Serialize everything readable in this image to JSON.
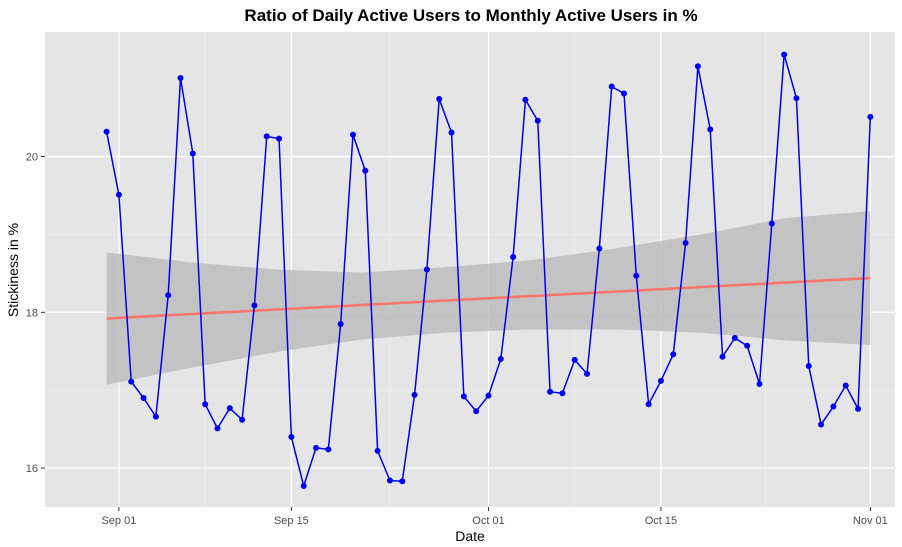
{
  "chart_data": {
    "type": "line",
    "title": "Ratio of Daily Active Users to Monthly Active Users in %",
    "xlabel": "Date",
    "ylabel": "Stickiness in %",
    "x_range": [
      "2023-08-26",
      "2023-11-03"
    ],
    "ylim": [
      15.5,
      21.6
    ],
    "x_ticks": [
      {
        "date": "2023-09-01",
        "label": "Sep 01"
      },
      {
        "date": "2023-09-15",
        "label": "Sep 15"
      },
      {
        "date": "2023-10-01",
        "label": "Oct 01"
      },
      {
        "date": "2023-10-15",
        "label": "Oct 15"
      },
      {
        "date": "2023-11-01",
        "label": "Nov 01"
      }
    ],
    "y_ticks": [
      {
        "value": 16,
        "label": "16"
      },
      {
        "value": 18,
        "label": "18"
      },
      {
        "value": 20,
        "label": "20"
      }
    ],
    "grid": true,
    "background": "#e5e5e5",
    "series": [
      {
        "color": "#0000ee",
        "x": [
          "2023-08-31",
          "2023-09-01",
          "2023-09-02",
          "2023-09-03",
          "2023-09-04",
          "2023-09-05",
          "2023-09-06",
          "2023-09-07",
          "2023-09-08",
          "2023-09-09",
          "2023-09-10",
          "2023-09-11",
          "2023-09-12",
          "2023-09-13",
          "2023-09-14",
          "2023-09-15",
          "2023-09-16",
          "2023-09-17",
          "2023-09-18",
          "2023-09-19",
          "2023-09-20",
          "2023-09-21",
          "2023-09-22",
          "2023-09-23",
          "2023-09-24",
          "2023-09-25",
          "2023-09-26",
          "2023-09-27",
          "2023-09-28",
          "2023-09-29",
          "2023-09-30",
          "2023-10-01",
          "2023-10-02",
          "2023-10-03",
          "2023-10-04",
          "2023-10-05",
          "2023-10-06",
          "2023-10-07",
          "2023-10-08",
          "2023-10-09",
          "2023-10-10",
          "2023-10-11",
          "2023-10-12",
          "2023-10-13",
          "2023-10-14",
          "2023-10-15",
          "2023-10-16",
          "2023-10-17",
          "2023-10-18",
          "2023-10-19",
          "2023-10-20",
          "2023-10-21",
          "2023-10-22",
          "2023-10-23",
          "2023-10-24",
          "2023-10-25",
          "2023-10-26",
          "2023-10-27",
          "2023-10-28",
          "2023-10-29",
          "2023-10-30",
          "2023-10-31",
          "2023-11-01"
        ],
        "y": [
          20.32,
          19.51,
          17.11,
          16.9,
          16.66,
          18.22,
          21.01,
          20.04,
          16.82,
          16.51,
          16.77,
          16.62,
          18.09,
          20.26,
          20.23,
          16.4,
          15.77,
          16.26,
          16.24,
          17.85,
          20.28,
          19.82,
          16.22,
          15.84,
          15.83,
          16.94,
          18.55,
          20.74,
          20.31,
          16.92,
          16.73,
          16.93,
          17.4,
          18.71,
          20.73,
          20.46,
          16.98,
          16.96,
          17.39,
          17.21,
          18.82,
          20.9,
          20.81,
          18.47,
          16.82,
          17.12,
          17.46,
          18.89,
          21.16,
          20.35,
          17.43,
          17.67,
          17.57,
          17.08,
          19.14,
          21.31,
          20.75,
          17.31,
          16.56,
          16.79,
          17.06,
          16.76,
          20.51
        ]
      }
    ],
    "trend": {
      "color": "#f8766d",
      "method": "linear",
      "y_start": 17.92,
      "y_end": 18.44,
      "band_color": "#bdbdbd",
      "band_lower": [
        17.07,
        17.29,
        17.49,
        17.65,
        17.74,
        17.78,
        17.78,
        17.74,
        17.64,
        17.58
      ],
      "band_upper": [
        18.77,
        18.64,
        18.55,
        18.51,
        18.58,
        18.67,
        18.82,
        19.0,
        19.21,
        19.3
      ]
    }
  }
}
